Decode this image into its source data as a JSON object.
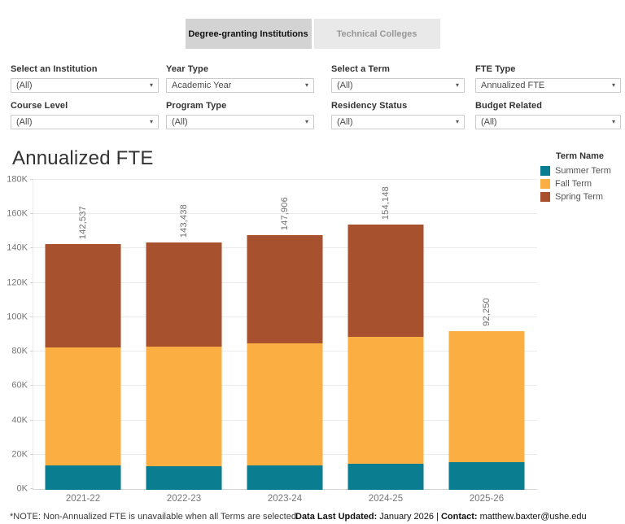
{
  "tabs": [
    {
      "label": "Degree-granting Institutions",
      "active": true
    },
    {
      "label": "Technical Colleges",
      "active": false
    }
  ],
  "filters": [
    {
      "label": "Select an Institution",
      "value": "(All)"
    },
    {
      "label": "Year Type",
      "value": "Academic Year"
    },
    {
      "label": "Select a Term",
      "value": "(All)"
    },
    {
      "label": "FTE Type",
      "value": "Annualized FTE"
    },
    {
      "label": "Course Level",
      "value": "(All)"
    },
    {
      "label": "Program Type",
      "value": "(All)"
    },
    {
      "label": "Residency Status",
      "value": "(All)"
    },
    {
      "label": "Budget Related",
      "value": "(All)"
    }
  ],
  "chart_data": {
    "type": "bar",
    "stacked": true,
    "title": "Annualized FTE",
    "legend_title": "Term Name",
    "legend_position": "right",
    "grid": true,
    "categories": [
      "2021-22",
      "2022-23",
      "2023-24",
      "2024-25",
      "2025-26"
    ],
    "series": [
      {
        "name": "Summer Term",
        "color": "#0b7d91",
        "values": [
          14000,
          13800,
          14000,
          15200,
          16250
        ]
      },
      {
        "name": "Fall Term",
        "color": "#fbae42",
        "values": [
          68500,
          69200,
          71000,
          73800,
          76000
        ]
      },
      {
        "name": "Spring Term",
        "color": "#a8512f",
        "values": [
          60037,
          60438,
          62906,
          65148,
          0
        ]
      }
    ],
    "totals": [
      142537,
      143438,
      147906,
      154148,
      92250
    ],
    "total_labels": [
      "142,537",
      "143,438",
      "147,906",
      "154,148",
      "92,250"
    ],
    "ylim": [
      0,
      180000
    ],
    "ytick_step": 20000,
    "ytick_labels": [
      "0K",
      "20K",
      "40K",
      "60K",
      "80K",
      "100K",
      "120K",
      "140K",
      "160K",
      "180K"
    ],
    "xlabel": "",
    "ylabel": ""
  },
  "footer": {
    "note": "*NOTE: Non-Annualized FTE is unavailable when all Terms are selected",
    "updated_label": "Data Last Updated:",
    "updated_value": " January 2026 | ",
    "contact_label": "Contact:",
    "contact_value": " matthew.baxter@ushe.edu"
  },
  "icons": {
    "dropdown_caret": "▾"
  }
}
